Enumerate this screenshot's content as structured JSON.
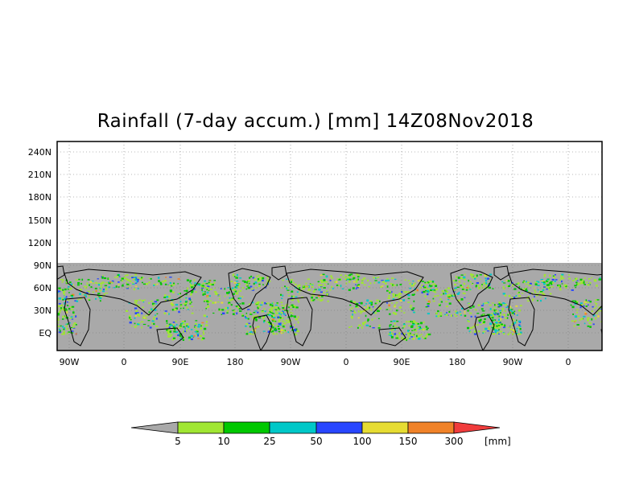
{
  "title": "Rainfall (7-day accum.) [mm] 14Z08Nov2018",
  "map": {
    "y_ticks": [
      "240N",
      "210N",
      "180N",
      "150N",
      "120N",
      "90N",
      "60N",
      "30N",
      "EQ"
    ],
    "x_ticks": [
      "90W",
      "0",
      "90E",
      "180",
      "90W",
      "0",
      "90E",
      "180",
      "90W",
      "0"
    ],
    "grid": "dotted",
    "no_data_color": "#a9a9a9",
    "land_outline_color": "#000000"
  },
  "colorbar": {
    "levels": [
      "5",
      "10",
      "25",
      "50",
      "100",
      "150",
      "300"
    ],
    "unit": "[mm]",
    "colors": [
      "#a9a9a9",
      "#a0e632",
      "#00c800",
      "#00c8c8",
      "#2846ff",
      "#e6dc32",
      "#f08228",
      "#f03c3c"
    ]
  }
}
